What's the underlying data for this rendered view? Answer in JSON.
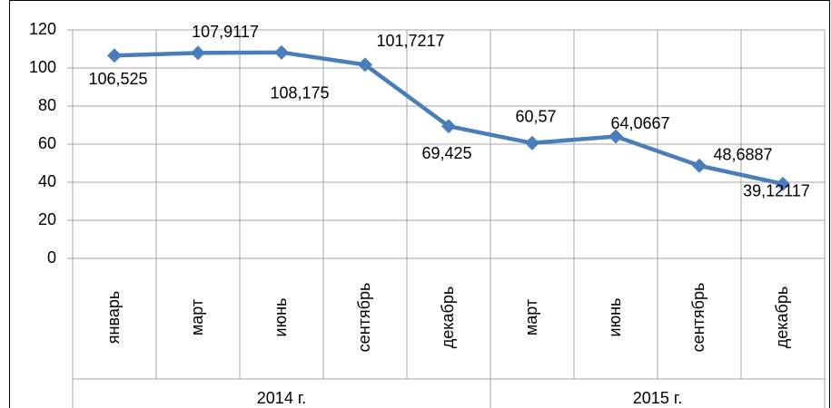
{
  "chart_data": {
    "type": "line",
    "category_groups": [
      {
        "label": "2014 г.",
        "categories": [
          "январь",
          "март",
          "июнь",
          "сентябрь",
          "декабрь"
        ]
      },
      {
        "label": "2015 г.",
        "categories": [
          "март",
          "июнь",
          "сентябрь",
          "декабрь"
        ]
      }
    ],
    "values": [
      106.525,
      107.9117,
      108.175,
      101.7217,
      69.425,
      60.57,
      64.0667,
      48.6887,
      39.12117
    ],
    "value_labels": [
      "106,525",
      "107,9117",
      "108,175",
      "101,7217",
      "69,425",
      "60,57",
      "64,0667",
      "48,6887",
      "39,12117"
    ],
    "color": "#4a7ebb",
    "ylim": [
      0,
      120
    ],
    "yticks": [
      0,
      20,
      40,
      60,
      80,
      100,
      120
    ],
    "grid": true
  }
}
